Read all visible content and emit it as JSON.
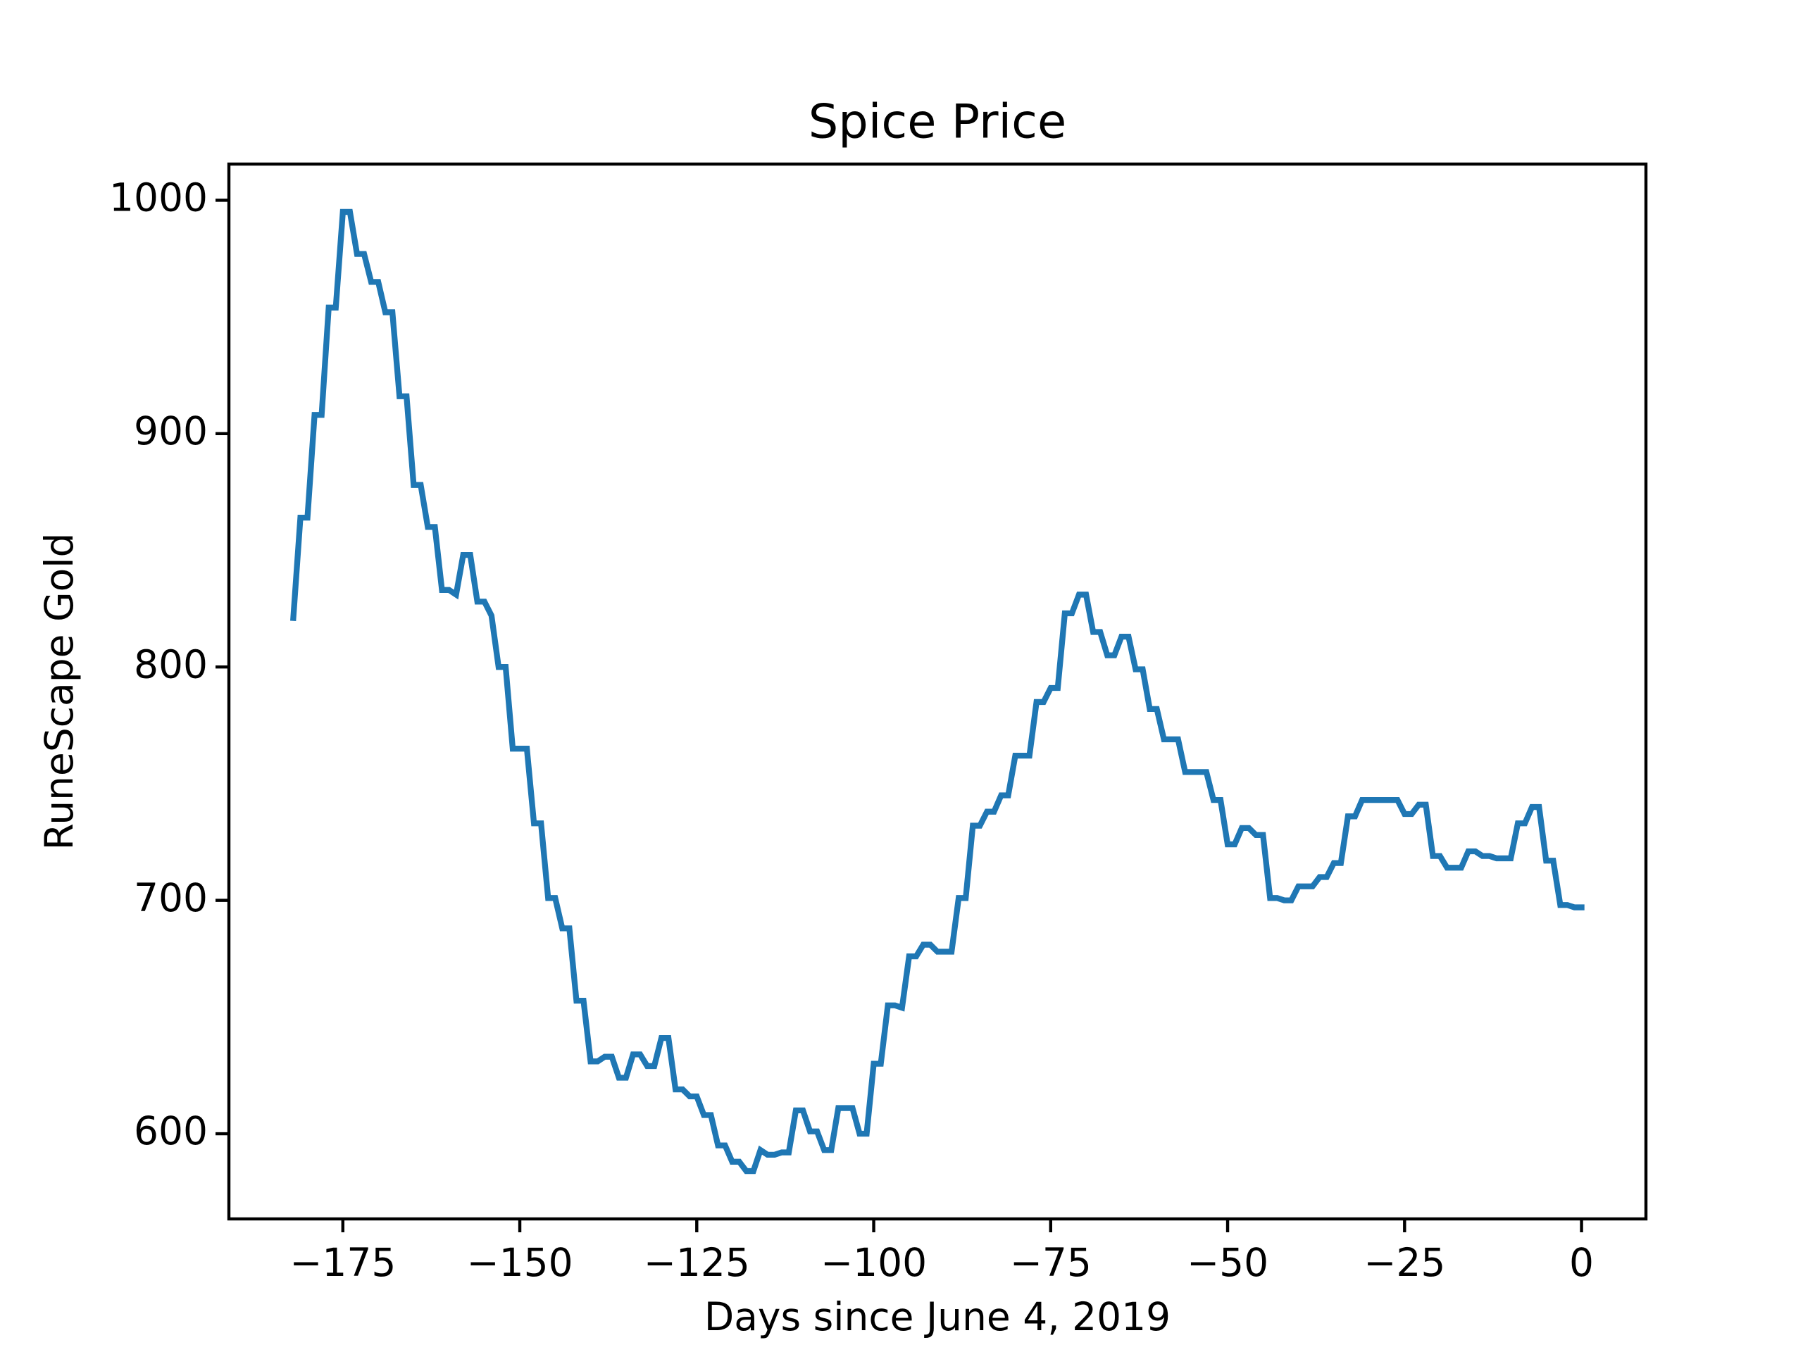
{
  "chart_data": {
    "type": "line",
    "title": "Spice Price",
    "xlabel": "Days since June 4, 2019",
    "ylabel": "RuneScape Gold",
    "x": [
      -182,
      -181,
      -180,
      -179,
      -178,
      -177,
      -176,
      -175,
      -174,
      -173,
      -172,
      -171,
      -170,
      -169,
      -168,
      -167,
      -166,
      -165,
      -164,
      -163,
      -162,
      -161,
      -160,
      -159,
      -158,
      -157,
      -156,
      -155,
      -154,
      -153,
      -152,
      -151,
      -150,
      -149,
      -148,
      -147,
      -146,
      -145,
      -144,
      -143,
      -142,
      -141,
      -140,
      -139,
      -138,
      -137,
      -136,
      -135,
      -134,
      -133,
      -132,
      -131,
      -130,
      -129,
      -128,
      -127,
      -126,
      -125,
      -124,
      -123,
      -122,
      -121,
      -120,
      -119,
      -118,
      -117,
      -116,
      -115,
      -114,
      -113,
      -112,
      -111,
      -110,
      -109,
      -108,
      -107,
      -106,
      -105,
      -104,
      -103,
      -102,
      -101,
      -100,
      -99,
      -98,
      -97,
      -96,
      -95,
      -94,
      -93,
      -92,
      -91,
      -90,
      -89,
      -88,
      -87,
      -86,
      -85,
      -84,
      -83,
      -82,
      -81,
      -80,
      -79,
      -78,
      -77,
      -76,
      -75,
      -74,
      -73,
      -72,
      -71,
      -70,
      -69,
      -68,
      -67,
      -66,
      -65,
      -64,
      -63,
      -62,
      -61,
      -60,
      -59,
      -58,
      -57,
      -56,
      -55,
      -54,
      -53,
      -52,
      -51,
      -50,
      -49,
      -48,
      -47,
      -46,
      -45,
      -44,
      -43,
      -42,
      -41,
      -40,
      -39,
      -38,
      -37,
      -36,
      -35,
      -34,
      -33,
      -32,
      -31,
      -30,
      -29,
      -28,
      -27,
      -26,
      -25,
      -24,
      -23,
      -22,
      -21,
      -20,
      -19,
      -18,
      -17,
      -16,
      -15,
      -14,
      -13,
      -12,
      -11,
      -10,
      -9,
      -8,
      -7,
      -6,
      -5,
      -4,
      -3,
      -2,
      -1,
      0
    ],
    "series": [
      {
        "color": "#1f77b4",
        "values": [
          821,
          864,
          864,
          908,
          908,
          954,
          954,
          995,
          995,
          977,
          977,
          965,
          965,
          952,
          952,
          916,
          916,
          878,
          878,
          860,
          860,
          833,
          833,
          831,
          848,
          848,
          828,
          828,
          822,
          800,
          800,
          765,
          765,
          765,
          733,
          733,
          701,
          701,
          688,
          688,
          657,
          657,
          631,
          631,
          633,
          633,
          624,
          624,
          634,
          634,
          629,
          629,
          641,
          641,
          619,
          619,
          616,
          616,
          608,
          608,
          595,
          595,
          588,
          588,
          584,
          584,
          593,
          591,
          591,
          592,
          592,
          610,
          610,
          601,
          601,
          593,
          593,
          611,
          611,
          611,
          600,
          600,
          630,
          630,
          655,
          655,
          654,
          676,
          676,
          681,
          681,
          678,
          678,
          678,
          701,
          701,
          732,
          732,
          738,
          738,
          745,
          745,
          762,
          762,
          762,
          785,
          785,
          791,
          791,
          823,
          823,
          831,
          831,
          815,
          815,
          805,
          805,
          813,
          813,
          799,
          799,
          782,
          782,
          769,
          769,
          769,
          755,
          755,
          755,
          755,
          743,
          743,
          724,
          724,
          731,
          731,
          728,
          728,
          701,
          701,
          700,
          700,
          706,
          706,
          706,
          710,
          710,
          716,
          716,
          736,
          736,
          743,
          743,
          743,
          743,
          743,
          743,
          737,
          737,
          741,
          741,
          719,
          719,
          714,
          714,
          714,
          721,
          721,
          719,
          719,
          718,
          718,
          718,
          733,
          733,
          740,
          740,
          717,
          717,
          698,
          698,
          697,
          697
        ]
      }
    ],
    "xlim": [
      -191.1,
      9.1
    ],
    "ylim": [
      563.5,
      1015.5
    ],
    "xticks": [
      {
        "value": -175,
        "label": "−175"
      },
      {
        "value": -150,
        "label": "−150"
      },
      {
        "value": -125,
        "label": "−125"
      },
      {
        "value": -100,
        "label": "−100"
      },
      {
        "value": -75,
        "label": "−75"
      },
      {
        "value": -50,
        "label": "−50"
      },
      {
        "value": -25,
        "label": "−25"
      },
      0
    ],
    "yticks": [
      600,
      700,
      800,
      900,
      1000
    ],
    "grid": false
  }
}
